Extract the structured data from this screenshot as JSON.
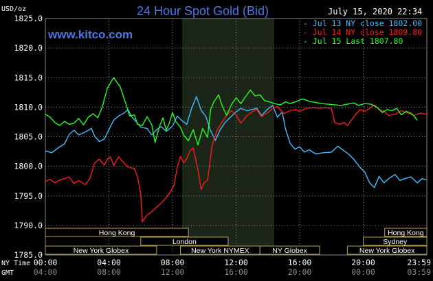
{
  "header": {
    "title": "24 Hour Spot Gold (Bid)",
    "website": "www.kitco.com",
    "datetime": "July 15, 2020 22:34",
    "units": "USD/oz"
  },
  "labels": {
    "ny_time": "NY Time",
    "gmt": "GMT"
  },
  "colors": {
    "background": "#000000",
    "grid": "#8a8a8a",
    "shade": "#1b2618",
    "title": "#4b78e6",
    "jul13": "#3fbfff",
    "jul14": "#ff1a1a",
    "jul15": "#22ff22",
    "session_border": "#b8a24a"
  },
  "sessions": {
    "row1": [
      {
        "label": "Hong Kong",
        "start": 0,
        "end": 9
      },
      {
        "label": "Hong Kong",
        "start": 21.35,
        "end": 24
      }
    ],
    "row2": [
      {
        "label": "London",
        "start": 6,
        "end": 11.5
      },
      {
        "label": "Sydney",
        "start": 20,
        "end": 24
      }
    ],
    "row3": [
      {
        "label": "New York Globex",
        "start": 0,
        "end": 7
      },
      {
        "label": "New York NYMEX",
        "start": 8.5,
        "end": 13.5
      },
      {
        "label": "NY Globex",
        "start": 13.5,
        "end": 17.25
      },
      {
        "label": "New York Globex",
        "start": 19,
        "end": 24
      }
    ]
  },
  "chart_data": {
    "type": "line",
    "title": "24 Hour Spot Gold (Bid)",
    "ylabel": "USD/oz",
    "ylim": [
      1785,
      1825
    ],
    "yticks": [
      "1825.0",
      "1820.0",
      "1815.0",
      "1810.0",
      "1805.0",
      "1800.0",
      "1795.0",
      "1790.0",
      "1785.0"
    ],
    "xlim": [
      0,
      24
    ],
    "x_ticks_ny": [
      "00:00",
      "04:00",
      "08:00",
      "12:00",
      "16:00",
      "20:00",
      "23:59"
    ],
    "x_ticks_gmt": [
      "04:00",
      "08:00",
      "12:00",
      "16:00",
      "20:00",
      "00:00",
      "03:59"
    ],
    "shaded_region": [
      8.6,
      14.4
    ],
    "grid": true,
    "legend_position": "top-right",
    "series": [
      {
        "name": "Jul 13 NY close 1802.00",
        "color": "#3fbfff",
        "points": [
          [
            0,
            1802.6
          ],
          [
            0.4,
            1802.3
          ],
          [
            0.8,
            1803.1
          ],
          [
            1.2,
            1803.8
          ],
          [
            1.5,
            1805.4
          ],
          [
            1.8,
            1806.1
          ],
          [
            2.1,
            1805.3
          ],
          [
            2.5,
            1805.8
          ],
          [
            2.9,
            1806.4
          ],
          [
            3.1,
            1805.1
          ],
          [
            3.4,
            1804.2
          ],
          [
            3.7,
            1804.6
          ],
          [
            4.0,
            1806.2
          ],
          [
            4.3,
            1807.8
          ],
          [
            4.6,
            1808.5
          ],
          [
            4.9,
            1808.9
          ],
          [
            5.2,
            1809.6
          ],
          [
            5.4,
            1808.5
          ],
          [
            5.7,
            1807.6
          ],
          [
            6.0,
            1806.6
          ],
          [
            6.4,
            1806.4
          ],
          [
            6.7,
            1805.3
          ],
          [
            7.0,
            1806.2
          ],
          [
            7.3,
            1806.7
          ],
          [
            7.6,
            1805.9
          ],
          [
            8.0,
            1806.8
          ],
          [
            8.3,
            1808.5
          ],
          [
            8.6,
            1807.7
          ],
          [
            8.9,
            1807.1
          ],
          [
            9.2,
            1809.8
          ],
          [
            9.5,
            1811.8
          ],
          [
            9.8,
            1809.5
          ],
          [
            10.1,
            1808.4
          ],
          [
            10.4,
            1806.0
          ],
          [
            10.7,
            1804.4
          ],
          [
            11.0,
            1806.2
          ],
          [
            11.3,
            1807.4
          ],
          [
            11.6,
            1808.2
          ],
          [
            12.0,
            1809.2
          ],
          [
            12.3,
            1809.8
          ],
          [
            12.7,
            1809.4
          ],
          [
            13.0,
            1809.6
          ],
          [
            13.3,
            1809.8
          ],
          [
            13.6,
            1808.6
          ],
          [
            14.0,
            1809.7
          ],
          [
            14.3,
            1810.3
          ],
          [
            14.6,
            1808.3
          ],
          [
            14.9,
            1809.2
          ],
          [
            15.1,
            1806.4
          ],
          [
            15.4,
            1803.9
          ],
          [
            15.7,
            1802.9
          ],
          [
            16.0,
            1803.3
          ],
          [
            16.3,
            1802.4
          ],
          [
            16.6,
            1802.8
          ],
          [
            17.0,
            1802.1
          ],
          [
            17.5,
            1802.3
          ],
          [
            18.0,
            1802.4
          ],
          [
            18.4,
            1803.4
          ],
          [
            18.8,
            1802.6
          ],
          [
            19.1,
            1802.0
          ],
          [
            19.4,
            1801.2
          ],
          [
            19.8,
            1799.8
          ],
          [
            20.1,
            1799.0
          ],
          [
            20.4,
            1797.2
          ],
          [
            20.7,
            1796.4
          ],
          [
            21.0,
            1798.3
          ],
          [
            21.3,
            1797.2
          ],
          [
            21.6,
            1797.9
          ],
          [
            22.0,
            1798.6
          ],
          [
            22.3,
            1797.6
          ],
          [
            22.6,
            1797.9
          ],
          [
            23.0,
            1798.2
          ],
          [
            23.4,
            1797.2
          ],
          [
            23.7,
            1797.9
          ],
          [
            23.98,
            1797.7
          ]
        ]
      },
      {
        "name": "Jul 14 NY close 1809.80",
        "color": "#ff1a1a",
        "points": [
          [
            0,
            1797.4
          ],
          [
            0.3,
            1797.8
          ],
          [
            0.6,
            1797.2
          ],
          [
            0.9,
            1797.7
          ],
          [
            1.2,
            1797.9
          ],
          [
            1.5,
            1798.2
          ],
          [
            1.8,
            1797.1
          ],
          [
            2.1,
            1797.6
          ],
          [
            2.5,
            1796.9
          ],
          [
            2.8,
            1797.9
          ],
          [
            3.1,
            1800.6
          ],
          [
            3.4,
            1801.2
          ],
          [
            3.7,
            1800.2
          ],
          [
            3.9,
            1801.2
          ],
          [
            4.1,
            1801.6
          ],
          [
            4.3,
            1800.1
          ],
          [
            4.6,
            1801.6
          ],
          [
            4.9,
            1800.7
          ],
          [
            5.2,
            1799.9
          ],
          [
            5.6,
            1799.6
          ],
          [
            5.8,
            1798.2
          ],
          [
            6.0,
            1795.3
          ],
          [
            6.1,
            1790.6
          ],
          [
            6.4,
            1791.8
          ],
          [
            6.7,
            1792.3
          ],
          [
            7.0,
            1793.1
          ],
          [
            7.3,
            1793.8
          ],
          [
            7.6,
            1794.7
          ],
          [
            7.9,
            1795.8
          ],
          [
            8.1,
            1796.9
          ],
          [
            8.3,
            1799.8
          ],
          [
            8.5,
            1801.7
          ],
          [
            8.7,
            1800.6
          ],
          [
            8.9,
            1801.3
          ],
          [
            9.1,
            1802.6
          ],
          [
            9.3,
            1803.1
          ],
          [
            9.6,
            1799.4
          ],
          [
            9.8,
            1796.1
          ],
          [
            10.0,
            1797.3
          ],
          [
            10.2,
            1797.6
          ],
          [
            10.5,
            1803.6
          ],
          [
            10.8,
            1806.1
          ],
          [
            11.1,
            1807.4
          ],
          [
            11.4,
            1808.6
          ],
          [
            11.7,
            1809.4
          ],
          [
            12.0,
            1808.7
          ],
          [
            12.3,
            1807.3
          ],
          [
            12.7,
            1808.6
          ],
          [
            13.0,
            1809.2
          ],
          [
            13.3,
            1809.6
          ],
          [
            13.6,
            1808.4
          ],
          [
            14.0,
            1809.1
          ],
          [
            14.3,
            1809.8
          ],
          [
            14.6,
            1810.1
          ],
          [
            15.0,
            1808.9
          ],
          [
            15.4,
            1809.4
          ],
          [
            15.7,
            1809.6
          ],
          [
            16.0,
            1809.3
          ],
          [
            16.4,
            1809.8
          ],
          [
            16.8,
            1809.9
          ],
          [
            17.2,
            1809.8
          ],
          [
            17.6,
            1809.9
          ],
          [
            18.0,
            1809.8
          ],
          [
            18.2,
            1807.4
          ],
          [
            18.5,
            1807.1
          ],
          [
            18.8,
            1807.4
          ],
          [
            19.0,
            1806.9
          ],
          [
            19.2,
            1807.6
          ],
          [
            19.5,
            1808.7
          ],
          [
            19.8,
            1809.6
          ],
          [
            20.1,
            1809.3
          ],
          [
            20.4,
            1809.8
          ],
          [
            20.7,
            1810.4
          ],
          [
            21.0,
            1809.6
          ],
          [
            21.3,
            1809.3
          ],
          [
            21.6,
            1808.6
          ],
          [
            22.0,
            1808.8
          ],
          [
            22.4,
            1809.4
          ],
          [
            22.8,
            1809.0
          ],
          [
            23.2,
            1808.6
          ],
          [
            23.6,
            1809.0
          ],
          [
            23.98,
            1808.8
          ]
        ]
      },
      {
        "name": "Jul 15 Last 1807.80",
        "color": "#22ff22",
        "points": [
          [
            0,
            1808.8
          ],
          [
            0.3,
            1808.3
          ],
          [
            0.6,
            1807.4
          ],
          [
            0.9,
            1806.9
          ],
          [
            1.2,
            1807.6
          ],
          [
            1.5,
            1807.1
          ],
          [
            1.8,
            1807.3
          ],
          [
            2.1,
            1808.1
          ],
          [
            2.4,
            1807.0
          ],
          [
            2.7,
            1808.3
          ],
          [
            3.0,
            1808.9
          ],
          [
            3.3,
            1808.2
          ],
          [
            3.6,
            1810.2
          ],
          [
            3.9,
            1813.2
          ],
          [
            4.1,
            1814.1
          ],
          [
            4.3,
            1815.0
          ],
          [
            4.5,
            1814.2
          ],
          [
            4.7,
            1813.5
          ],
          [
            4.9,
            1811.9
          ],
          [
            5.1,
            1810.3
          ],
          [
            5.3,
            1808.5
          ],
          [
            5.6,
            1808.7
          ],
          [
            5.8,
            1807.1
          ],
          [
            6.1,
            1806.9
          ],
          [
            6.4,
            1808.4
          ],
          [
            6.7,
            1807.0
          ],
          [
            6.9,
            1804.0
          ],
          [
            7.2,
            1806.9
          ],
          [
            7.4,
            1808.2
          ],
          [
            7.6,
            1806.1
          ],
          [
            7.8,
            1807.3
          ],
          [
            8.0,
            1809.1
          ],
          [
            8.2,
            1807.6
          ],
          [
            8.5,
            1806.6
          ],
          [
            8.7,
            1805.3
          ],
          [
            9.0,
            1804.3
          ],
          [
            9.3,
            1806.2
          ],
          [
            9.6,
            1803.6
          ],
          [
            9.9,
            1806.4
          ],
          [
            10.2,
            1804.9
          ],
          [
            10.4,
            1809.6
          ],
          [
            10.6,
            1810.9
          ],
          [
            10.9,
            1812.1
          ],
          [
            11.1,
            1810.4
          ],
          [
            11.4,
            1808.6
          ],
          [
            11.7,
            1810.4
          ],
          [
            12.0,
            1811.6
          ],
          [
            12.3,
            1810.6
          ],
          [
            12.6,
            1811.8
          ],
          [
            12.9,
            1812.9
          ],
          [
            13.2,
            1811.9
          ],
          [
            13.5,
            1812.1
          ],
          [
            13.8,
            1811.1
          ],
          [
            14.1,
            1810.9
          ],
          [
            14.4,
            1810.6
          ],
          [
            14.8,
            1810.4
          ],
          [
            15.1,
            1810.9
          ],
          [
            15.4,
            1810.6
          ],
          [
            15.8,
            1811.0
          ],
          [
            16.2,
            1811.4
          ],
          [
            16.6,
            1811.0
          ],
          [
            17.0,
            1810.8
          ],
          [
            17.4,
            1810.6
          ],
          [
            17.8,
            1810.5
          ],
          [
            18.2,
            1810.4
          ],
          [
            18.6,
            1810.3
          ],
          [
            19.0,
            1810.5
          ],
          [
            19.4,
            1810.7
          ],
          [
            19.7,
            1810.3
          ],
          [
            20.1,
            1810.6
          ],
          [
            20.5,
            1810.5
          ],
          [
            20.9,
            1809.9
          ],
          [
            21.2,
            1809.1
          ],
          [
            21.5,
            1809.6
          ],
          [
            21.8,
            1809.4
          ],
          [
            22.1,
            1809.8
          ],
          [
            22.4,
            1808.7
          ],
          [
            22.7,
            1809.3
          ],
          [
            23.0,
            1809.0
          ],
          [
            23.2,
            1808.5
          ],
          [
            23.4,
            1807.8
          ]
        ]
      }
    ]
  }
}
